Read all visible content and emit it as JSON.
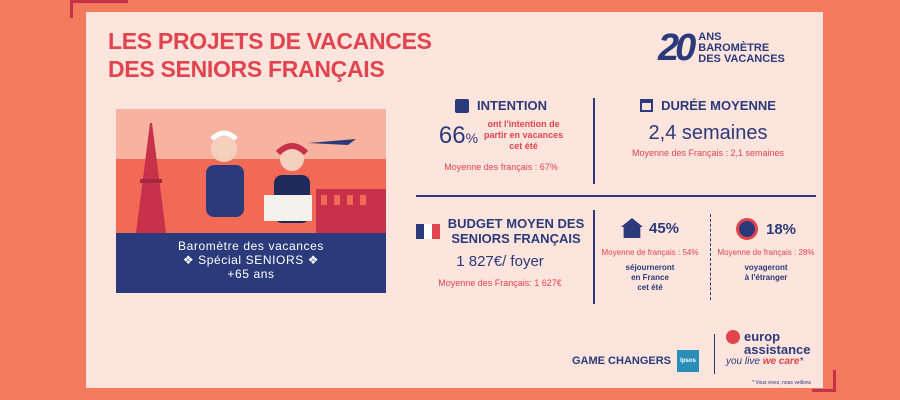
{
  "title": {
    "line1": "LES PROJETS DE VACANCES",
    "line2": "DES SENIORS FRANÇAIS"
  },
  "logo": {
    "number": "20",
    "line1": "ANS",
    "line2": "BAROMÈTRE",
    "line3": "DES VACANCES"
  },
  "illustration": {
    "line1": "Baromètre des vacances",
    "line2": "❖ Spécial SENIORS ❖",
    "line3": "+65 ans"
  },
  "intention": {
    "heading": "INTENTION",
    "value": "66",
    "unit": "%",
    "desc_line1": "ont l'intention de",
    "desc_line2": "partir en vacances",
    "desc_line3": "cet été",
    "average": "Moyenne des français : 67%"
  },
  "duration": {
    "heading": "DURÉE MOYENNE",
    "value": "2,4 semaines",
    "average": "Moyenne des Français : 2,1 semaines"
  },
  "budget": {
    "heading_line1": "BUDGET MOYEN DES",
    "heading_line2": "SENIORS FRANÇAIS",
    "value": "1 827€/ foyer",
    "average": "Moyenne des Français:  1 627€"
  },
  "france": {
    "value": "45%",
    "average": "Moyenne de français : 54%",
    "desc_line1": "séjourneront",
    "desc_line2": "en France",
    "desc_line3": "cet été"
  },
  "abroad": {
    "value": "18%",
    "average": "Moyenne de français : 28%",
    "desc_line1": "voyageront",
    "desc_line2": "à l'étranger"
  },
  "footer": {
    "game_changers": "GAME CHANGERS",
    "ipsos": "Ipsos",
    "brand_line1": "europ",
    "brand_line2": "assistance",
    "tagline_a": "you live",
    "tagline_b": "we care",
    "footnote": "* Vous vivez, nous veillons"
  },
  "colors": {
    "background": "#f47a5e",
    "card": "#fde4dc",
    "red": "#e0444f",
    "navy": "#2b3a7a"
  }
}
